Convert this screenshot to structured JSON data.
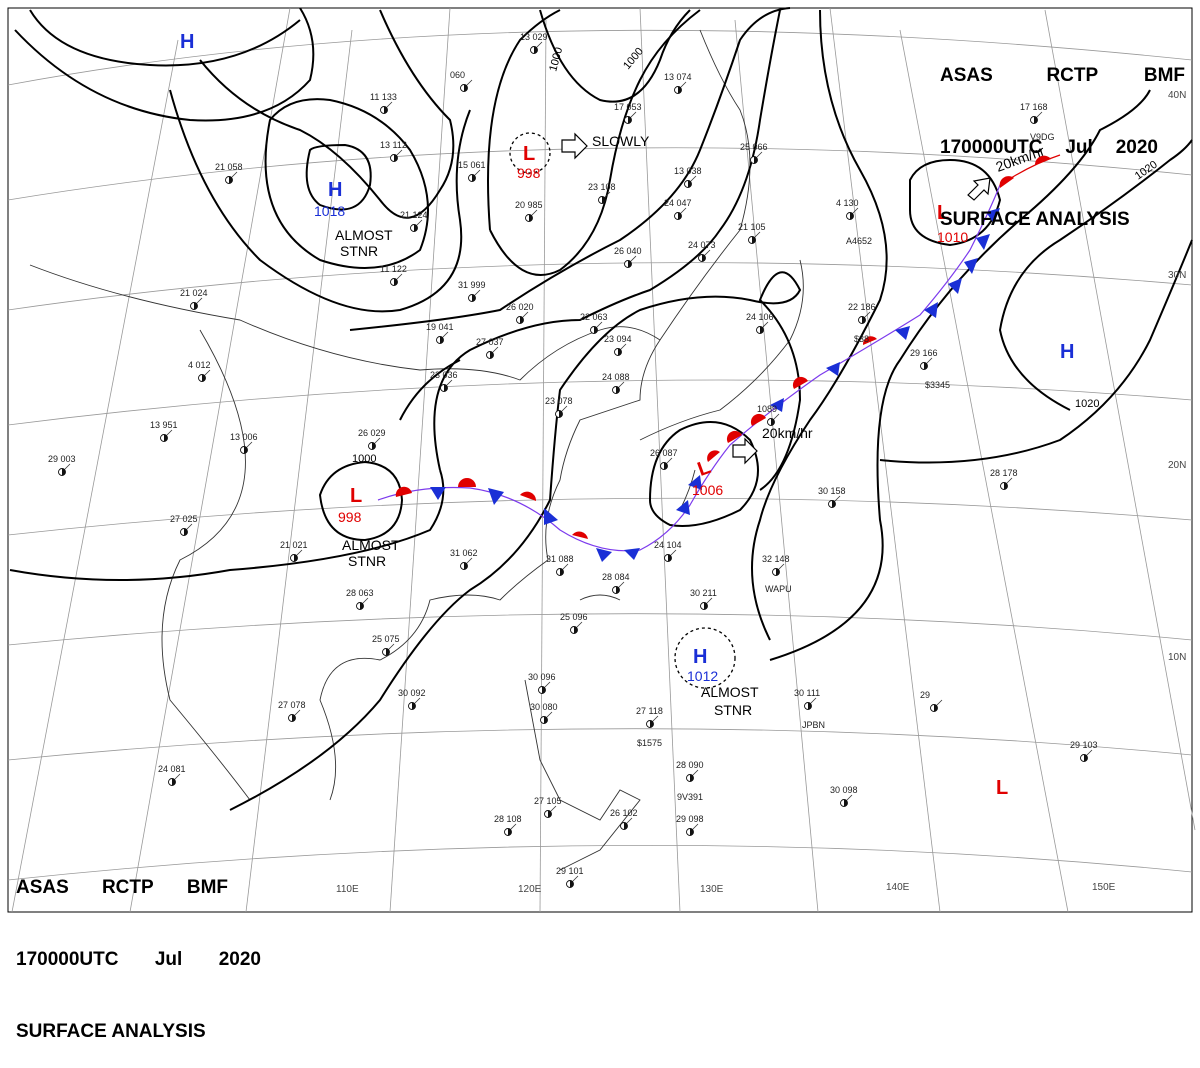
{
  "header": {
    "agency": "ASAS",
    "station": "RCTP",
    "office": "BMF",
    "time": "170000UTC",
    "month": "Jul",
    "year": "2020",
    "title": "SURFACE ANALYSIS"
  },
  "colors": {
    "high": "#1a2fd6",
    "low": "#e00000",
    "warm_front": "#e00000",
    "cold_front": "#1a2fd6",
    "isobar": "#000000",
    "grid": "#888888"
  },
  "longitude_labels": [
    "110E",
    "120E",
    "130E",
    "140E",
    "150E"
  ],
  "latitude_labels": [
    "40N",
    "30N",
    "20N",
    "10N"
  ],
  "isobar_labels": [
    "1000",
    "1000",
    "1000",
    "1020",
    "1020"
  ],
  "pressure_systems": [
    {
      "type": "H",
      "value": "",
      "note": ""
    },
    {
      "type": "H",
      "value": "1018",
      "note1": "ALMOST",
      "note2": "STNR"
    },
    {
      "type": "L",
      "value": "998",
      "note": "SLOWLY"
    },
    {
      "type": "L",
      "value": "1010",
      "note": "20km/hr"
    },
    {
      "type": "H",
      "value": "",
      "note": ""
    },
    {
      "type": "L",
      "value": "998",
      "note1": "ALMOST",
      "note2": "STNR"
    },
    {
      "type": "L",
      "value": "1006",
      "note": "20km/hr"
    },
    {
      "type": "H",
      "value": "1012",
      "note1": "ALMOST",
      "note2": "STNR"
    },
    {
      "type": "L",
      "value": "",
      "note": ""
    }
  ],
  "stations": [
    "13 029",
    "060",
    "11 133",
    "13 112",
    "21 058",
    "15 061",
    "20 985",
    "23 108",
    "21 124",
    "11 122",
    "21 024",
    "31 999",
    "19 041",
    "27 037",
    "26 020",
    "22 063",
    "23 094",
    "24 088",
    "23 036",
    "23 078",
    "4 012",
    "13 951",
    "13 006",
    "26 029",
    "29 003",
    "27 025",
    "21 021",
    "31 062",
    "31 088",
    "28 084",
    "25 096",
    "28 063",
    "25 075",
    "30 092",
    "27 078",
    "24 081",
    "30 096",
    "30 080",
    "27 118",
    "28 090",
    "27 105",
    "28 108",
    "26 102",
    "29 101",
    "29 098",
    "30 098",
    "30 111",
    "29 103",
    "29",
    "28 178",
    "30 158",
    "32 148",
    "30 211",
    "22 186",
    "29 166",
    "4 130",
    "13 038",
    "24 047",
    "13 074",
    "25 066",
    "26 040",
    "24 073",
    "21 105",
    "24 106",
    "17 168",
    "1089",
    "24 104",
    "26 087",
    "17 053"
  ],
  "station_codes": [
    "$1575",
    "9V391",
    "JPBN",
    "WAPU",
    "A4652",
    "$3345",
    "$38",
    "V9DG"
  ]
}
